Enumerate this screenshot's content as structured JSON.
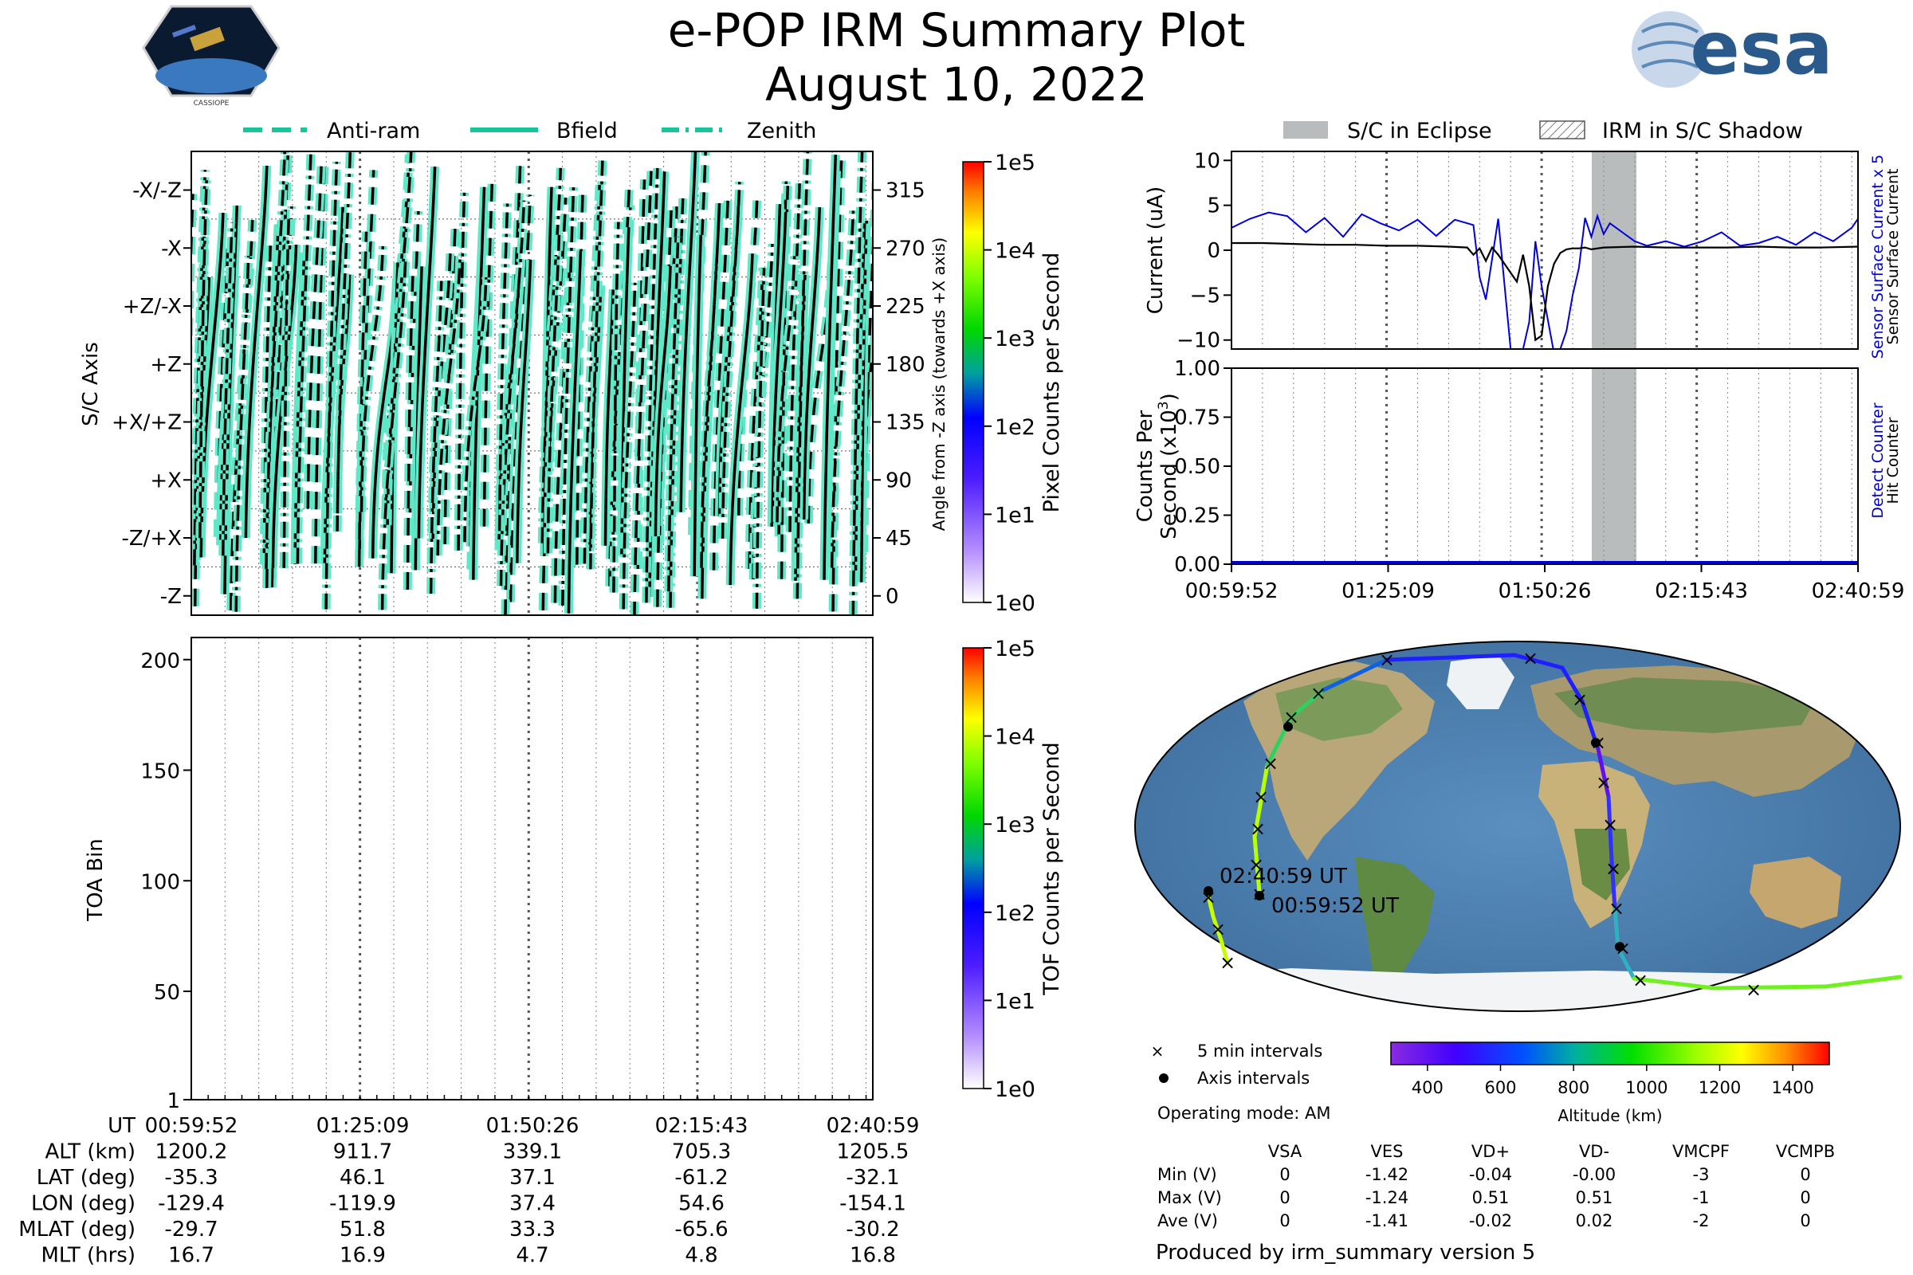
{
  "header": {
    "title": "e-POP IRM Summary Plot",
    "date": "August 10, 2022",
    "mission_logo_label": "CASSIOPE",
    "esa_logo_text": "esa"
  },
  "legend_top": {
    "items": [
      "Anti-ram",
      "Bfield",
      "Zenith"
    ]
  },
  "legend_right": {
    "items": [
      "S/C in Eclipse",
      "IRM in S/C Shadow"
    ]
  },
  "colors": {
    "trace_fill": "#5fe8c8",
    "trace_line": "#000000",
    "eclipse": "#b8bcbc",
    "surface_current": "#0000dd",
    "sensor_current": "#000000",
    "hit_counter": "#0000cc"
  },
  "chart_data": [
    {
      "id": "sc_axis",
      "type": "line",
      "ylabel": "S/C Axis",
      "y2label": "Angle from -Z axis (towards +X axis)",
      "y_tick_labels": [
        "-X/-Z",
        "-X",
        "+Z/-X",
        "+Z",
        "+X/+Z",
        "+X",
        "-Z/+X",
        "-Z"
      ],
      "y_tick_values": [
        315,
        270,
        225,
        180,
        135,
        90,
        45,
        0
      ],
      "y2_tick_labels": [
        "315",
        "270",
        "225",
        "180",
        "135",
        "90",
        "45",
        "0"
      ],
      "ylim": [
        -15,
        345
      ],
      "xlim": [
        "00:59:52",
        "02:40:59"
      ],
      "colorbar": {
        "label": "Pixel Counts per Second",
        "ticks": [
          "1e5",
          "1e4",
          "1e3",
          "1e2",
          "1e1",
          "1e0"
        ]
      }
    },
    {
      "id": "toa",
      "type": "heatmap",
      "ylabel": "TOA Bin",
      "yticks": [
        "200",
        "150",
        "100",
        "50",
        "1"
      ],
      "ylim": [
        1,
        210
      ],
      "xlim": [
        "00:59:52",
        "02:40:59"
      ],
      "colorbar": {
        "label": "TOF Counts per Second",
        "ticks": [
          "1e5",
          "1e4",
          "1e3",
          "1e2",
          "1e1",
          "1e0"
        ]
      }
    },
    {
      "id": "current",
      "type": "line",
      "ylabel": "Current (uA)",
      "y2_labels": [
        "Sensor Surface Current x 5",
        "Sensor Surface Current"
      ],
      "yticks": [
        "10",
        "5",
        "0",
        "−5",
        "−10"
      ],
      "ylim": [
        -11,
        11
      ],
      "eclipse_interval": [
        "01:57:05",
        "02:04:05"
      ],
      "series": [
        {
          "name": "Sensor Surface Current x 5",
          "x": [
            0,
            3,
            6,
            9,
            12,
            15,
            18,
            21,
            24,
            27,
            30,
            33,
            36,
            39,
            40,
            41,
            42,
            43,
            45,
            47,
            48,
            49,
            50,
            52,
            53,
            54,
            55,
            56,
            57,
            58,
            59,
            60,
            61,
            62,
            63,
            65,
            67,
            70,
            73,
            76,
            79,
            82,
            85,
            88,
            91,
            94,
            97,
            100,
            101
          ],
          "y": [
            2.5,
            3.5,
            4.2,
            3.8,
            2.0,
            3.6,
            1.5,
            4.0,
            3.0,
            2.2,
            3.4,
            1.6,
            3.4,
            2.8,
            -3.0,
            -5.5,
            -1.0,
            3.5,
            -11.0,
            -11.0,
            -8.0,
            1.0,
            -4.0,
            -11.5,
            -11.0,
            -9.0,
            -5.0,
            -2.0,
            3.6,
            1.5,
            3.8,
            1.8,
            3.0,
            2.5,
            2.0,
            1.0,
            0.5,
            1.0,
            0.4,
            1.0,
            2.0,
            0.5,
            0.8,
            1.5,
            0.6,
            2.0,
            1.0,
            2.5,
            3.5
          ]
        },
        {
          "name": "Sensor Surface Current",
          "x": [
            0,
            5,
            10,
            15,
            20,
            25,
            30,
            35,
            38,
            39,
            40,
            41,
            42,
            43,
            44,
            45,
            46,
            47,
            48,
            49,
            50,
            51,
            52,
            53,
            54,
            55,
            56,
            57,
            58,
            60,
            65,
            70,
            75,
            80,
            85,
            90,
            95,
            101
          ],
          "y": [
            0.8,
            0.8,
            0.7,
            0.6,
            0.6,
            0.5,
            0.5,
            0.4,
            0.3,
            -0.5,
            0.2,
            -1.2,
            0.3,
            -0.5,
            -1.5,
            -2.5,
            -3.5,
            -0.5,
            -4.0,
            -10.0,
            -9.5,
            -4.0,
            -1.5,
            -0.3,
            0.1,
            0.2,
            0.2,
            0.3,
            0.1,
            0.3,
            0.4,
            0.3,
            0.3,
            0.3,
            0.4,
            0.3,
            0.3,
            0.4
          ]
        }
      ]
    },
    {
      "id": "counts",
      "type": "line",
      "ylabel": "Counts Per Second (x10³)",
      "ylabel_line1": "Counts Per",
      "ylabel_line2": "Second (x10",
      "ylabel_sup": "3",
      "ylabel_end": ")",
      "y2_labels": [
        "Detect Counter",
        "Hit Counter"
      ],
      "yticks": [
        "1.00",
        "0.75",
        "0.50",
        "0.25",
        "0.00"
      ],
      "ylim": [
        0,
        1
      ],
      "xticks": [
        "00:59:52",
        "01:25:09",
        "01:50:26",
        "02:15:43",
        "02:40:59"
      ],
      "series": [
        {
          "name": "Detect Counter",
          "x": [
            0,
            101
          ],
          "y": [
            0,
            0
          ]
        }
      ]
    }
  ],
  "bottom_table": {
    "rows": [
      {
        "label": "UT",
        "values": [
          "00:59:52",
          "01:25:09",
          "01:50:26",
          "02:15:43",
          "02:40:59"
        ]
      },
      {
        "label": "ALT (km)",
        "values": [
          "1200.2",
          "911.7",
          "339.1",
          "705.3",
          "1205.5"
        ]
      },
      {
        "label": "LAT (deg)",
        "values": [
          "-35.3",
          "46.1",
          "37.1",
          "-61.2",
          "-32.1"
        ]
      },
      {
        "label": "LON (deg)",
        "values": [
          "-129.4",
          "-119.9",
          "37.4",
          "54.6",
          "-154.1"
        ]
      },
      {
        "label": "MLAT (deg)",
        "values": [
          "-29.7",
          "51.8",
          "33.3",
          "-65.6",
          "-30.2"
        ]
      },
      {
        "label": "MLT (hrs)",
        "values": [
          "16.7",
          "16.9",
          "4.7",
          "4.8",
          "16.8"
        ]
      }
    ]
  },
  "map": {
    "start_label": "00:59:52 UT",
    "end_label": "02:40:59 UT",
    "legend": [
      "5 min intervals",
      "Axis intervals"
    ],
    "altitude_label": "Altitude (km)",
    "altitude_ticks": [
      "400",
      "600",
      "800",
      "1000",
      "1200",
      "1400"
    ]
  },
  "operating_mode": "Operating mode: AM",
  "voltage_table": {
    "headers": [
      "VSA",
      "VES",
      "VD+",
      "VD-",
      "VMCPF",
      "VCMPB"
    ],
    "rows": [
      {
        "label": "Min (V)",
        "values": [
          "0",
          "-1.42",
          "-0.04",
          "-0.00",
          "-3",
          "0"
        ]
      },
      {
        "label": "Max (V)",
        "values": [
          "0",
          "-1.24",
          "0.51",
          "0.51",
          "-1",
          "0"
        ]
      },
      {
        "label": "Ave (V)",
        "values": [
          "0",
          "-1.41",
          "-0.02",
          "0.02",
          "-2",
          "0"
        ]
      }
    ]
  },
  "footer": "Produced by irm_summary version 5"
}
